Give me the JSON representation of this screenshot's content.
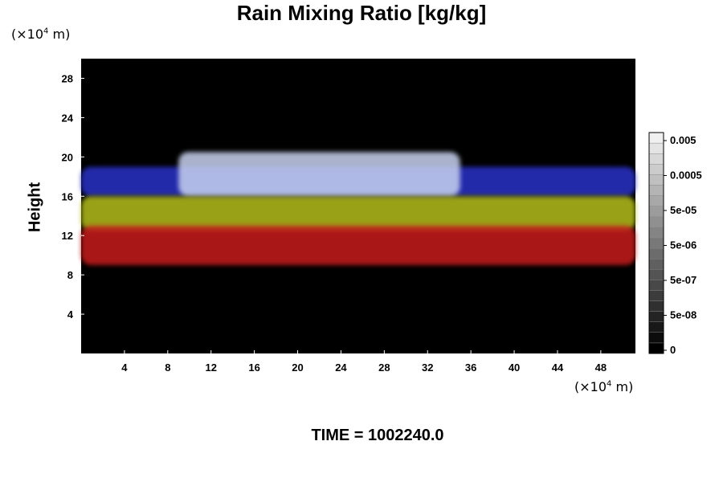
{
  "chart_data": {
    "type": "heatmap",
    "title": "Rain Mixing Ratio [kg/kg]",
    "xlabel": "",
    "ylabel": "Height",
    "x_unit_prefix": "(×10",
    "x_unit_exp": "4",
    "x_unit_suffix": " m)",
    "y_unit_prefix": "(×10",
    "y_unit_exp": "4",
    "y_unit_suffix": " m)",
    "xlim": [
      0,
      51.2
    ],
    "ylim": [
      0,
      30
    ],
    "x_ticks": [
      4,
      8,
      12,
      16,
      20,
      24,
      28,
      32,
      36,
      40,
      44,
      48
    ],
    "y_ticks": [
      4,
      8,
      12,
      16,
      20,
      24,
      28
    ],
    "colorbar": {
      "labels": [
        "0.005",
        "0.0005",
        "5e-05",
        "5e-06",
        "5e-07",
        "5e-08",
        "0"
      ],
      "levels": 21
    },
    "layers": [
      {
        "color": "#2a32c8",
        "y_range": [
          16,
          19
        ],
        "x_range": [
          0,
          51.2
        ]
      },
      {
        "color": "#c8d2f0",
        "y_range": [
          16,
          20.5
        ],
        "x_range": [
          9,
          35
        ]
      },
      {
        "color": "#b4be1e",
        "y_range": [
          12.5,
          16
        ],
        "x_range": [
          0,
          51.2
        ]
      },
      {
        "color": "#c81e1e",
        "y_range": [
          9,
          13
        ],
        "x_range": [
          0,
          51.2
        ]
      }
    ],
    "time_label": "TIME = 1002240.0"
  }
}
